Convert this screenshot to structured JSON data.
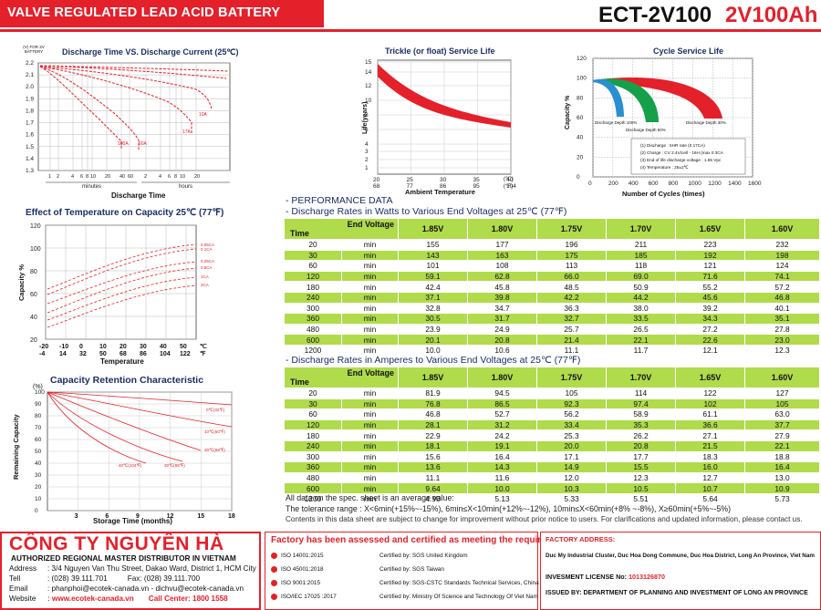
{
  "header": {
    "title": "VALVE REGULATED LEAD ACID BATTERY",
    "model": "ECT-2V100",
    "capacity": "2V100Ah"
  },
  "colors": {
    "brand_red": "#e4202b",
    "table_green": "#b0db4b",
    "title_blue": "#1b2f66"
  },
  "discharge_chart": {
    "title": "Discharge Time VS. Discharge Current (25℃)",
    "y_unit_label": "(V) FOR 2V BATTERY",
    "y_ticks": [
      "2.2",
      "2.1",
      "2.0",
      "1.9",
      "1.8",
      "1.7",
      "1.6",
      "1.5",
      "1.4",
      "1.3"
    ],
    "x_ticks_min": [
      "1",
      "2",
      "4",
      "6",
      "8",
      "10",
      "20",
      "40",
      "60"
    ],
    "x_ticks_hr": [
      "2",
      "4",
      "6",
      "8",
      "10",
      "20"
    ],
    "minutes_label": "minutes",
    "hours_label": "hours",
    "xlabel": "Discharge Time",
    "curve_labels": [
      "100A",
      "60A",
      "17A",
      "10A"
    ]
  },
  "trickle_chart": {
    "title": "Trickle (or float) Service Life",
    "ylabel": "Life(years)",
    "xlabel": "Ambient Temperature",
    "y_ticks": [
      "15",
      "14",
      "12",
      "10",
      "8",
      "6",
      "4",
      "3",
      "2",
      "1"
    ],
    "x_ticks_c": [
      "20",
      "25",
      "30",
      "35",
      "40"
    ],
    "x_ticks_f": [
      "68",
      "77",
      "86",
      "95",
      "104"
    ],
    "unit_c": "(℃)",
    "unit_f": "(°F)"
  },
  "cycle_chart": {
    "title": "Cycle Service Life",
    "ylabel": "Capacity %",
    "xlabel": "Number of Cycles (times)",
    "y_ticks": [
      "120",
      "100",
      "80",
      "60",
      "40",
      "20",
      "0"
    ],
    "x_ticks": [
      "0",
      "200",
      "400",
      "600",
      "800",
      "1000",
      "1200",
      "1400",
      "1600"
    ],
    "depth_labels": [
      "Discharge Depth 100%",
      "Discharge Depth 50%",
      "Discharge Depth 30%"
    ],
    "notes": [
      "(1) Discharge : 5HR rate (0.17CA)",
      "(2) Charge : CV 2.4V/cell - 16H (max 0.3CA",
      "(3) End of life discharge voltage : 1.65 Vpc",
      "(4) Temperature : 25±2℃"
    ]
  },
  "temp_chart": {
    "title": "Effect of Temperature on Capacity 25℃ (77℉)",
    "ylabel": "Capacity %",
    "xlabel": "Temperature",
    "y_ticks": [
      "120",
      "100",
      "80",
      "60",
      "40",
      "20"
    ],
    "x_ticks_c": [
      "-20",
      "-10",
      "0",
      "10",
      "20",
      "30",
      "40",
      "50",
      "℃"
    ],
    "x_ticks_f": [
      "-4",
      "14",
      "32",
      "50",
      "68",
      "86",
      "104",
      "122",
      "℉"
    ],
    "curve_labels": [
      "0.05CA",
      "0.1CA",
      "0.25CA",
      "0.6CA",
      "1CA",
      "2CA"
    ]
  },
  "retention_chart": {
    "title": "Capacity Retention Characteristic",
    "ylabel": "Remaining Capacity",
    "y_unit": "(%)",
    "xlabel": "Storage Time (months)",
    "y_ticks": [
      "100",
      "90",
      "80",
      "70",
      "60",
      "50",
      "40",
      "30",
      "20",
      "10",
      "0"
    ],
    "x_ticks": [
      "3",
      "6",
      "9",
      "12",
      "15",
      "18"
    ],
    "curve_labels": [
      "0℃(32℉)",
      "10℃(50℉)",
      "20℃(68℉)",
      "30℃(86℉)",
      "40℃(104℉)"
    ]
  },
  "performance": {
    "heading": "- PERFORMANCE DATA",
    "watts_heading": "- Discharge Rates in Watts to Various End Voltages at 25℃ (77℉)",
    "amps_heading": "- Discharge Rates in Amperes to Various End Voltages at 25℃ (77℉)",
    "end_voltage_label": "End Voltage",
    "time_label": "Time",
    "voltages": [
      "1.85V",
      "1.80V",
      "1.75V",
      "1.70V",
      "1.65V",
      "1.60V"
    ],
    "unit": "min",
    "watts_rows": [
      {
        "t": "20",
        "v": [
          "155",
          "177",
          "196",
          "211",
          "223",
          "232"
        ]
      },
      {
        "t": "30",
        "v": [
          "143",
          "163",
          "175",
          "185",
          "192",
          "198"
        ]
      },
      {
        "t": "60",
        "v": [
          "101",
          "108",
          "113",
          "118",
          "121",
          "124"
        ]
      },
      {
        "t": "120",
        "v": [
          "59.1",
          "62.8",
          "66.0",
          "69.0",
          "71.6",
          "74.1"
        ]
      },
      {
        "t": "180",
        "v": [
          "42.4",
          "45.8",
          "48.5",
          "50.9",
          "55.2",
          "57.2"
        ]
      },
      {
        "t": "240",
        "v": [
          "37.1",
          "39.8",
          "42.2",
          "44.2",
          "45.6",
          "46.8"
        ]
      },
      {
        "t": "300",
        "v": [
          "32.8",
          "34.7",
          "36.3",
          "38.0",
          "39.2",
          "40.1"
        ]
      },
      {
        "t": "360",
        "v": [
          "30.5",
          "31.7",
          "32.7",
          "33.5",
          "34.3",
          "35.1"
        ]
      },
      {
        "t": "480",
        "v": [
          "23.9",
          "24.9",
          "25.7",
          "26.5",
          "27.2",
          "27.8"
        ]
      },
      {
        "t": "600",
        "v": [
          "20.1",
          "20.8",
          "21.4",
          "22.1",
          "22.6",
          "23.0"
        ]
      },
      {
        "t": "1200",
        "v": [
          "10.0",
          "10.6",
          "11.1",
          "11.7",
          "12.1",
          "12.3"
        ]
      }
    ],
    "amps_rows": [
      {
        "t": "20",
        "v": [
          "81.9",
          "94.5",
          "105",
          "114",
          "122",
          "127"
        ]
      },
      {
        "t": "30",
        "v": [
          "76.8",
          "86.5",
          "92.3",
          "97.4",
          "102",
          "105"
        ]
      },
      {
        "t": "60",
        "v": [
          "46.8",
          "52.7",
          "56.2",
          "58.9",
          "61.1",
          "63.0"
        ]
      },
      {
        "t": "120",
        "v": [
          "28.1",
          "31.2",
          "33.4",
          "35.3",
          "36.6",
          "37.7"
        ]
      },
      {
        "t": "180",
        "v": [
          "22.9",
          "24.2",
          "25.3",
          "26.2",
          "27.1",
          "27.9"
        ]
      },
      {
        "t": "240",
        "v": [
          "18.1",
          "19.1",
          "20.0",
          "20.8",
          "21.5",
          "22.1"
        ]
      },
      {
        "t": "300",
        "v": [
          "15.6",
          "16.4",
          "17.1",
          "17.7",
          "18.3",
          "18.8"
        ]
      },
      {
        "t": "360",
        "v": [
          "13.6",
          "14.3",
          "14.9",
          "15.5",
          "16.0",
          "16.4"
        ]
      },
      {
        "t": "480",
        "v": [
          "11.1",
          "11.6",
          "12.0",
          "12.3",
          "12.7",
          "13.0"
        ]
      },
      {
        "t": "600",
        "v": [
          "9.64",
          "10.0",
          "10.3",
          "10.5",
          "10.7",
          "10.9"
        ]
      },
      {
        "t": "1200",
        "v": [
          "4.90",
          "5.13",
          "5.33",
          "5.51",
          "5.64",
          "5.73"
        ]
      }
    ],
    "note1": "All data on the spec. sheet is an average value:",
    "note2": "The tolerance range : X<6min(+15%~-15%), 6min≤X<10min(+12%~-12%), 10min≤X<60min(+8% ~-8%), X≥60min(+5%~-5%)",
    "note3": "Contents in this data sheet are subject to change for improvement without prior notice to users. For clarifications and updated information, please contact us."
  },
  "company": {
    "name": "CÔNG TY NGUYÊN HÀ",
    "subtitle": "AUTHORIZED REGIONAL MASTER DISTRIBUTOR IN VIETNAM",
    "address_label": "Address",
    "address": ": 3/4 Nguyen Van Thu Street, Dakao Ward, District 1, HCM City",
    "tel_label": "Tell",
    "tel": ": (028) 39.111.701",
    "fax": "Fax: (028) 39.111.700",
    "email_label": "Email",
    "email": ": phanphoi@ecotek-canada.vn - dichvu@ecotek-canada.vn",
    "website_label": "Website",
    "website": ": www.ecotek-canada.vn",
    "call_center": "Call Center: 1800 1558"
  },
  "certs": {
    "title": "Factory has been assessed and certified as meeting the requirements of:",
    "items": [
      {
        "std": "ISO 14001:2015",
        "by": "Certified by: SGS United Kingdom"
      },
      {
        "std": "ISO 45001:2018",
        "by": "Certified by: SGS Taiwan"
      },
      {
        "std": "ISO 9001:2015",
        "by": "Certified by: SGS-CSTC Standards Technical Services, China"
      },
      {
        "std": "ISO/IEC 17025 :2017",
        "by": "Certified by: Ministry Of Science and Technology Of Viet Nam"
      }
    ]
  },
  "factory": {
    "title": "FACTORY ADDRESS:",
    "address": "Duc My Industrial Cluster, Duc Hoa Dong Commune, Duc Hoa District, Long An Province, Viet Nam",
    "license_label": "INVESMENT LICENSE No:",
    "license_no": "1013126870",
    "issued": "ISSUED BY: DEPARTMENT OF PLANNING AND INVESTMENT OF LONG AN PROVINCE"
  }
}
